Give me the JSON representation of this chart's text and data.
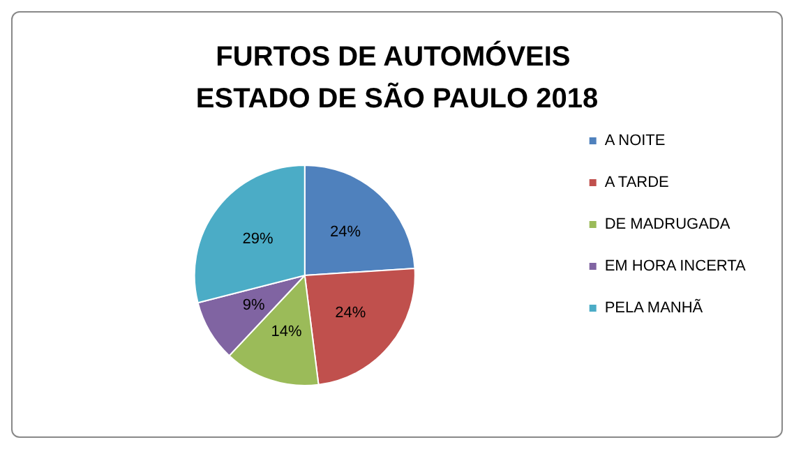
{
  "chart_data": {
    "type": "pie",
    "title": "FURTOS DE AUTOMÓVEIS ESTADO DE SÃO PAULO 2018",
    "categories": [
      "A NOITE",
      "A TARDE",
      "DE MADRUGADA",
      "EM HORA INCERTA",
      "PELA MANHÃ"
    ],
    "values": [
      24,
      24,
      14,
      9,
      29
    ],
    "colors": [
      "#4f81bd",
      "#c0504d",
      "#9bbb59",
      "#8064a2",
      "#4bacc6"
    ],
    "value_labels": [
      "24%",
      "24%",
      "14%",
      "9%",
      "29%"
    ],
    "legend": "right"
  }
}
